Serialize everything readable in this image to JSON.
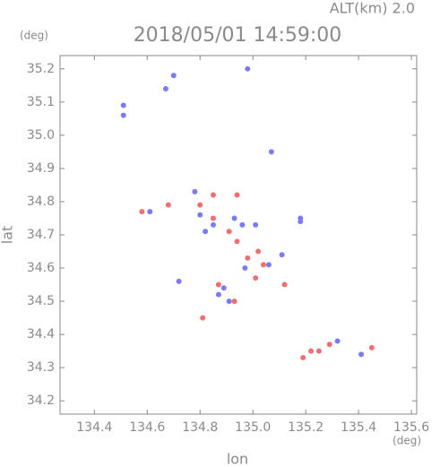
{
  "chart_data": {
    "type": "scatter",
    "title": "2018/05/01 14:59:00",
    "annotation": "ALT(km) 2.0",
    "xlabel": "lon",
    "ylabel": "lat",
    "x_unit": "(deg)",
    "y_unit": "(deg)",
    "xlim": [
      134.27,
      135.62
    ],
    "xticks": [
      134.4,
      134.6,
      134.8,
      {
        "value": 135,
        "label": "135.0"
      },
      135.2,
      135.4,
      135.6
    ],
    "ylim": [
      34.16,
      35.24
    ],
    "yticks": [
      34.2,
      34.3,
      34.4,
      34.5,
      34.6,
      34.7,
      34.8,
      34.9,
      {
        "value": 35,
        "label": "35.0"
      },
      35.1,
      35.2
    ],
    "series": [
      {
        "color": "#7b7bf5",
        "x": [
          134.51,
          134.51,
          134.67,
          134.7,
          134.98,
          134.78,
          134.8,
          134.85,
          134.93,
          134.96,
          135.01,
          135.18,
          135.18,
          135.11,
          134.97,
          135.06,
          134.72,
          134.89,
          134.91,
          134.87,
          135.41,
          135.32,
          134.61,
          134.82,
          135.07
        ],
        "values": [
          35.06,
          35.09,
          35.14,
          35.18,
          35.2,
          34.83,
          34.76,
          34.73,
          34.75,
          34.73,
          34.73,
          34.74,
          34.75,
          34.64,
          34.6,
          34.61,
          34.56,
          34.54,
          34.5,
          34.52,
          34.34,
          34.38,
          34.77,
          34.71,
          34.95
        ]
      },
      {
        "color": "#f07070",
        "x": [
          134.58,
          134.68,
          134.8,
          134.85,
          134.94,
          134.85,
          134.91,
          134.94,
          135.02,
          135.04,
          135.01,
          135.12,
          134.87,
          134.81,
          135.19,
          135.22,
          135.25,
          135.29,
          135.45,
          134.93,
          134.98
        ],
        "values": [
          34.77,
          34.79,
          34.79,
          34.82,
          34.82,
          34.75,
          34.71,
          34.68,
          34.65,
          34.61,
          34.57,
          34.55,
          34.55,
          34.45,
          34.33,
          34.35,
          34.35,
          34.37,
          34.36,
          34.5,
          34.63
        ]
      }
    ]
  }
}
